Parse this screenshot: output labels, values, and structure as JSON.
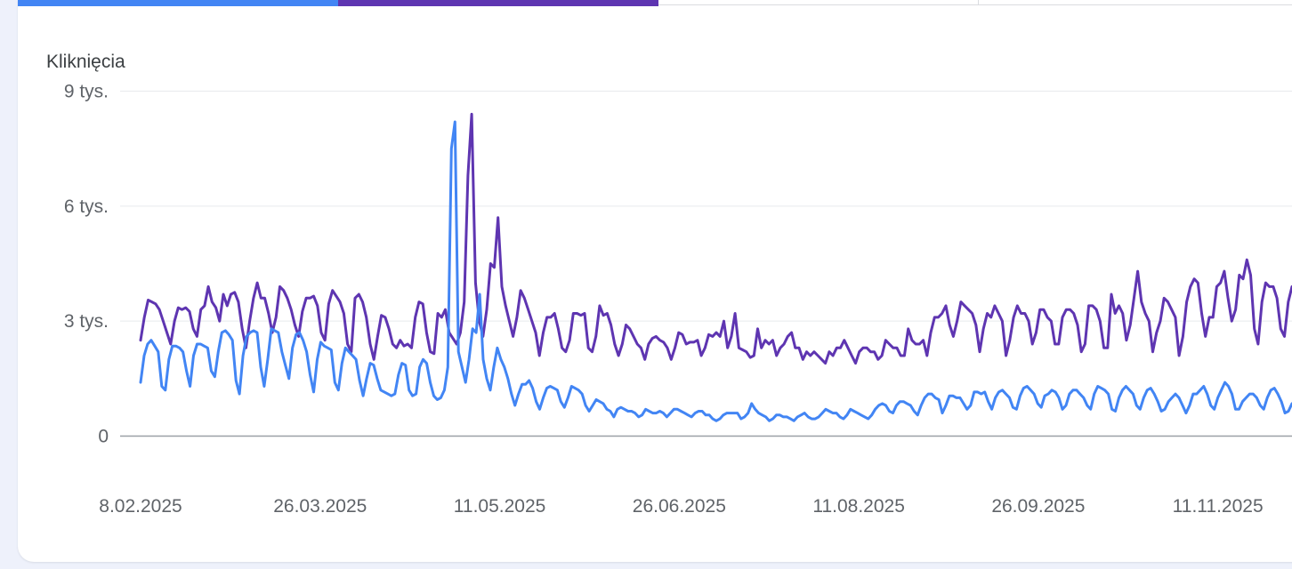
{
  "tabs": [
    {
      "label": "",
      "color": "#4285f4",
      "active": true
    },
    {
      "label": "",
      "color": "#5e35b1",
      "active": true
    },
    {
      "label": "",
      "active": false
    },
    {
      "label": "",
      "active": false
    }
  ],
  "chart_data": {
    "type": "line",
    "title": "",
    "ylabel": "Kliknięcia",
    "xlabel": "",
    "ylim": [
      0,
      9000
    ],
    "yticks": [
      {
        "value": 0,
        "label": "0"
      },
      {
        "value": 3000,
        "label": "3 tys."
      },
      {
        "value": 6000,
        "label": "6 tys."
      },
      {
        "value": 9000,
        "label": "9 tys."
      }
    ],
    "xticks": [
      "8.02.2025",
      "26.03.2025",
      "11.05.2025",
      "26.06.2025",
      "11.08.2025",
      "26.09.2025",
      "11.11.2025"
    ],
    "x_start": "2025-02-08",
    "x_end": "2025-11-30",
    "grid": true,
    "legend": "none",
    "series": [
      {
        "color": "#5e35b1",
        "values": [
          2500,
          3100,
          3550,
          3500,
          3450,
          3300,
          3000,
          2700,
          2400,
          3000,
          3350,
          3300,
          3350,
          3250,
          2800,
          2600,
          3300,
          3400,
          3900,
          3500,
          3350,
          3000,
          3700,
          3400,
          3700,
          3750,
          3500,
          2800,
          2300,
          3000,
          3600,
          4000,
          3600,
          3600,
          3200,
          2700,
          3100,
          3900,
          3800,
          3600,
          3300,
          2900,
          2600,
          3250,
          3600,
          3600,
          3650,
          3400,
          2700,
          2500,
          3450,
          3800,
          3650,
          3500,
          3200,
          2400,
          2200,
          3600,
          3700,
          3500,
          3100,
          2400,
          2000,
          2600,
          3150,
          3100,
          2800,
          2400,
          2300,
          2500,
          2350,
          2400,
          2300,
          3100,
          3500,
          3450,
          2700,
          2200,
          2150,
          3200,
          3100,
          3300,
          2700,
          2550,
          2400,
          2700,
          3500,
          6800,
          8400,
          4000,
          3000,
          2600,
          3300,
          4500,
          4400,
          5700,
          3900,
          3400,
          3000,
          2600,
          3100,
          3800,
          3600,
          3300,
          3000,
          2700,
          2100,
          2700,
          3100,
          3100,
          3200,
          2800,
          2300,
          2200,
          2500,
          3200,
          3200,
          3150,
          3200,
          2300,
          2200,
          2600,
          3400,
          3150,
          3200,
          2900,
          2400,
          2100,
          2400,
          2900,
          2800,
          2600,
          2400,
          2300,
          2000,
          2400,
          2550,
          2600,
          2500,
          2450,
          2300,
          2000,
          2300,
          2700,
          2650,
          2400,
          2450,
          2450,
          2500,
          2100,
          2300,
          2650,
          2600,
          2700,
          2600,
          3000,
          2300,
          2600,
          3200,
          2300,
          2250,
          2200,
          2050,
          2100,
          2800,
          2300,
          2500,
          2400,
          2500,
          2100,
          2300,
          2400,
          2600,
          2700,
          2300,
          2300,
          2000,
          2200,
          2100,
          2200,
          2100,
          2000,
          1900,
          2200,
          2100,
          2300,
          2300,
          2500,
          2300,
          2100,
          1900,
          2200,
          2300,
          2300,
          2200,
          2200,
          2000,
          2100,
          2500,
          2400,
          2300,
          2300,
          2100,
          2100,
          2800,
          2500,
          2400,
          2400,
          2500,
          2100,
          2700,
          3100,
          3100,
          3200,
          3400,
          2900,
          2600,
          3000,
          3500,
          3400,
          3300,
          3200,
          2900,
          2200,
          2800,
          3200,
          3100,
          3400,
          3200,
          3000,
          2100,
          2500,
          3100,
          3400,
          3200,
          3200,
          3000,
          2400,
          2700,
          3300,
          3300,
          3100,
          3000,
          2400,
          2400,
          3100,
          3300,
          3300,
          3200,
          2900,
          2200,
          2400,
          3400,
          3400,
          3300,
          3000,
          2300,
          2300,
          3700,
          3200,
          3400,
          3200,
          2500,
          2900,
          3600,
          4300,
          3500,
          3200,
          3000,
          2200,
          2700,
          3000,
          3600,
          3500,
          3300,
          3100,
          2100,
          2600,
          3500,
          3900,
          4100,
          4000,
          3200,
          2600,
          3100,
          3100,
          3900,
          4000,
          4300,
          3600,
          3000,
          3300,
          4200,
          4100,
          4600,
          4200,
          2800,
          2400,
          3500,
          4000,
          3900,
          3900,
          3600,
          2800,
          2600,
          3500,
          3900
        ]
      },
      {
        "color": "#4285f4",
        "values": [
          1400,
          2100,
          2400,
          2500,
          2350,
          2200,
          1300,
          1200,
          2000,
          2350,
          2350,
          2300,
          2200,
          1700,
          1300,
          2100,
          2400,
          2400,
          2350,
          2300,
          1700,
          1550,
          2200,
          2700,
          2750,
          2650,
          2500,
          1450,
          1100,
          2100,
          2600,
          2700,
          2750,
          2700,
          1800,
          1300,
          2000,
          2800,
          2750,
          2700,
          2200,
          1850,
          1500,
          2300,
          2650,
          2700,
          2500,
          2200,
          1600,
          1150,
          2000,
          2450,
          2350,
          2300,
          2250,
          1400,
          1200,
          1900,
          2300,
          2200,
          2100,
          2000,
          1450,
          1050,
          1500,
          1900,
          1850,
          1500,
          1200,
          1150,
          1100,
          1050,
          1100,
          1600,
          1900,
          1850,
          1200,
          1050,
          1100,
          1800,
          2000,
          1900,
          1400,
          1050,
          950,
          1000,
          1200,
          1800,
          7500,
          8200,
          2200,
          1800,
          1400,
          2000,
          2800,
          2700,
          3700,
          2000,
          1500,
          1200,
          1800,
          2300,
          2000,
          1800,
          1500,
          1100,
          800,
          1100,
          1350,
          1350,
          1450,
          1250,
          900,
          700,
          1000,
          1250,
          1300,
          1250,
          1200,
          900,
          750,
          1000,
          1300,
          1250,
          1200,
          1100,
          800,
          650,
          800,
          950,
          900,
          850,
          700,
          650,
          500,
          700,
          750,
          700,
          650,
          650,
          600,
          500,
          550,
          700,
          650,
          600,
          600,
          650,
          600,
          500,
          600,
          700,
          700,
          650,
          600,
          550,
          500,
          600,
          650,
          650,
          550,
          550,
          450,
          400,
          450,
          550,
          600,
          600,
          600,
          600,
          450,
          500,
          600,
          850,
          700,
          600,
          550,
          500,
          400,
          450,
          550,
          550,
          500,
          500,
          450,
          400,
          500,
          550,
          600,
          500,
          450,
          450,
          500,
          600,
          700,
          650,
          600,
          600,
          500,
          450,
          550,
          700,
          650,
          600,
          550,
          500,
          450,
          550,
          700,
          800,
          850,
          800,
          650,
          600,
          800,
          900,
          900,
          850,
          800,
          650,
          550,
          800,
          1000,
          1100,
          1100,
          1000,
          950,
          600,
          800,
          1050,
          1050,
          1000,
          1000,
          850,
          700,
          800,
          1150,
          1150,
          1100,
          1150,
          900,
          700,
          1000,
          1150,
          1200,
          1100,
          1000,
          750,
          700,
          1050,
          1250,
          1300,
          1200,
          1100,
          850,
          750,
          1050,
          1100,
          1200,
          1150,
          1000,
          700,
          800,
          1100,
          1200,
          1200,
          1100,
          1000,
          800,
          700,
          1100,
          1300,
          1250,
          1200,
          1100,
          700,
          650,
          1000,
          1200,
          1300,
          1200,
          1100,
          800,
          700,
          1000,
          1200,
          1250,
          1100,
          900,
          650,
          700,
          900,
          1000,
          1100,
          1000,
          800,
          600,
          800,
          1100,
          1100,
          1200,
          1300,
          1100,
          800,
          700,
          1000,
          1200,
          1400,
          1300,
          1100,
          700,
          700,
          900,
          1000,
          1100,
          1100,
          1000,
          800,
          700,
          1000,
          1200,
          1250,
          1100,
          900,
          600,
          650,
          850
        ]
      }
    ]
  }
}
